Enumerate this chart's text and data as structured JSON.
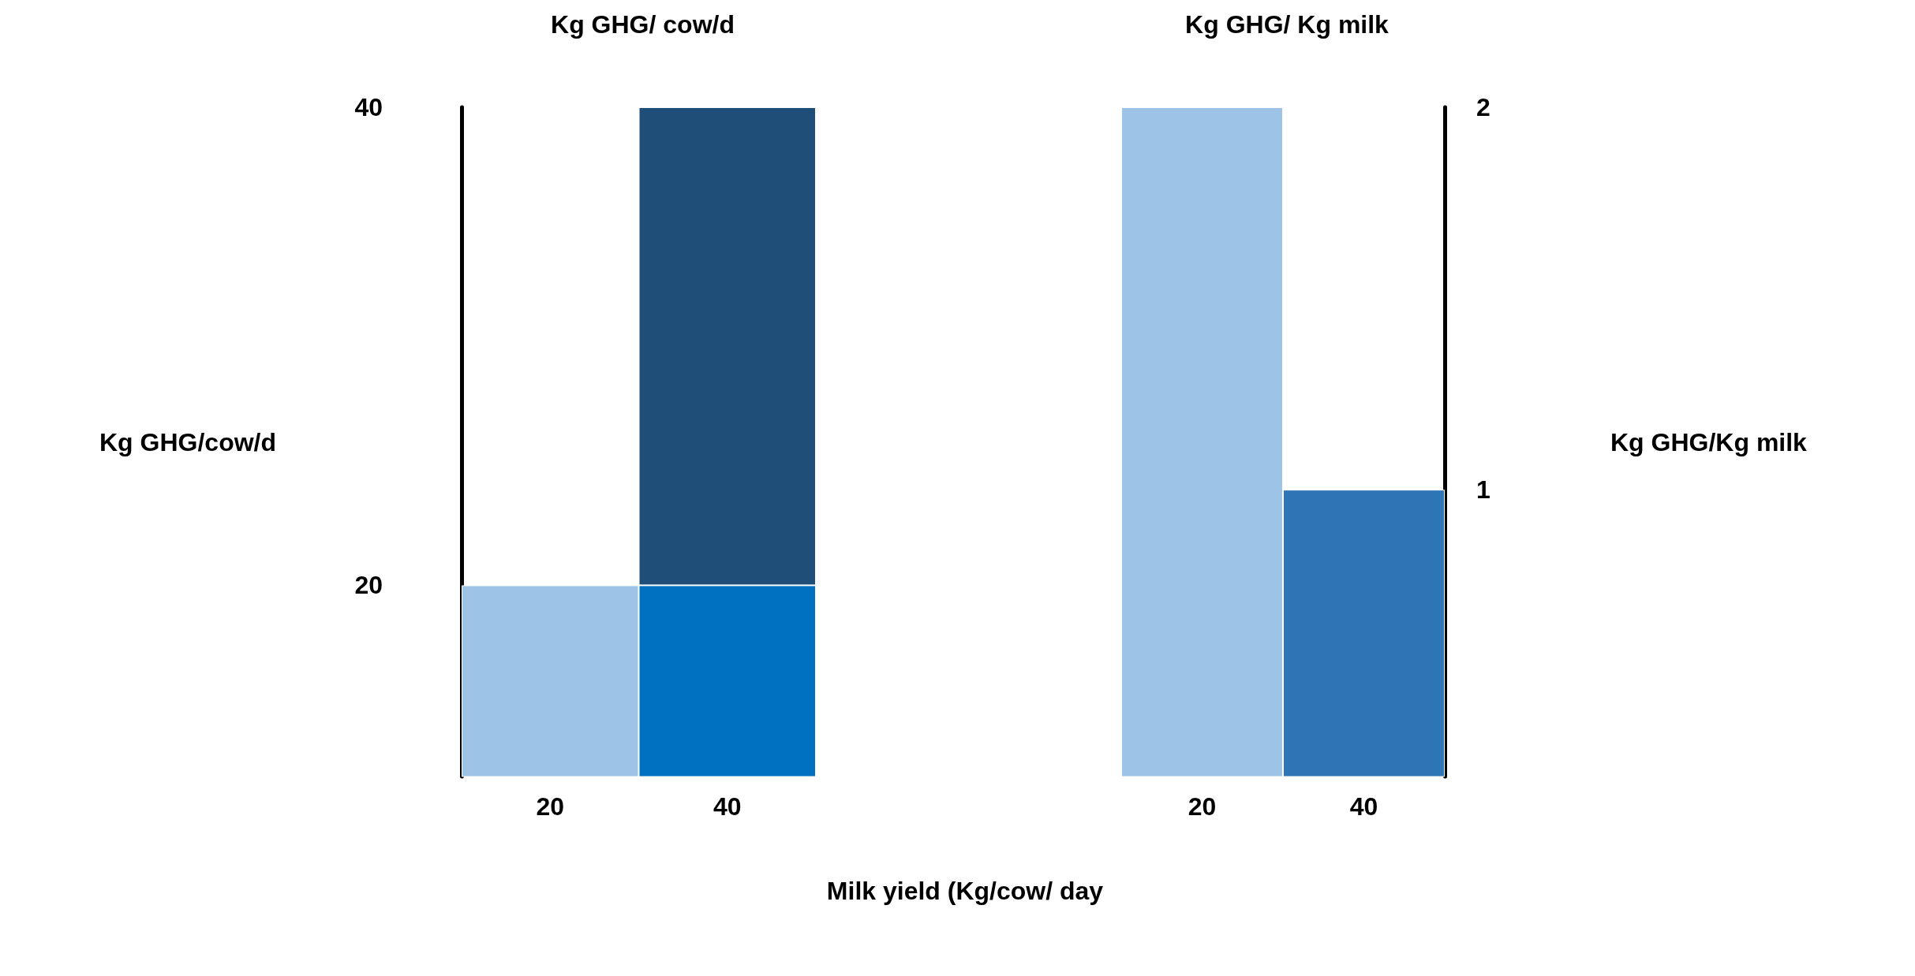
{
  "chart_data": [
    {
      "type": "bar",
      "title": "Kg GHG/ cow/d",
      "ylabel": "Kg GHG/cow/d",
      "xlabel": "Milk yield (Kg/cow/ day",
      "categories": [
        "20",
        "40"
      ],
      "stacked": true,
      "ylim": [
        12,
        40
      ],
      "yticks": [
        20,
        40
      ],
      "grid": false,
      "series": [
        {
          "color": "#9dc3e6",
          "values": [
            20,
            null
          ]
        },
        {
          "color": "#0070c0",
          "values": [
            null,
            20
          ]
        },
        {
          "color": "#1f4e79",
          "values": [
            null,
            20
          ]
        }
      ]
    },
    {
      "type": "bar",
      "title": "Kg GHG/ Kg milk",
      "y2label": "Kg GHG/Kg milk",
      "categories": [
        "20",
        "40"
      ],
      "stacked": true,
      "y2lim": [
        0.25,
        2
      ],
      "y2ticks": [
        1,
        2
      ],
      "grid": false,
      "series": [
        {
          "color": "#9dc3e6",
          "values": [
            2,
            null
          ],
          "axis": "y2"
        },
        {
          "color": "#2e75b6",
          "values": [
            null,
            1
          ],
          "axis": "y2"
        }
      ]
    }
  ]
}
